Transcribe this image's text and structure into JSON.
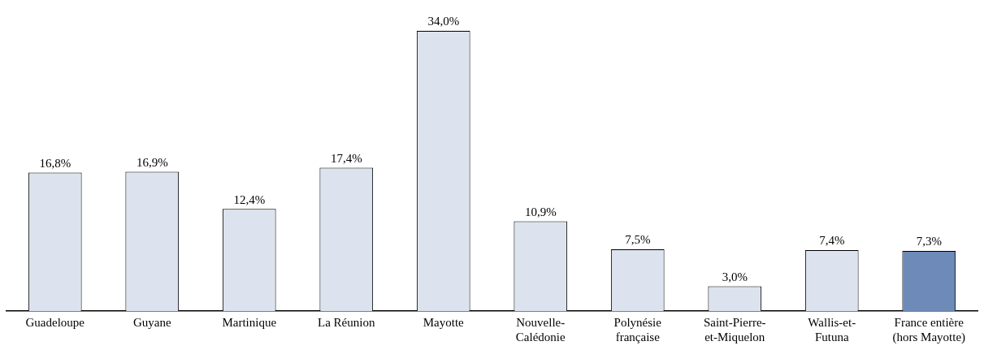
{
  "chart_data": {
    "type": "bar",
    "categories": [
      "Guadeloupe",
      "Guyane",
      "Martinique",
      "La Réunion",
      "Mayotte",
      "Nouvelle-\nCalédonie",
      "Polynésie\nfrançaise",
      "Saint-Pierre-\net-Miquelon",
      "Wallis-et-\nFutuna",
      "France entière\n(hors Mayotte)"
    ],
    "values": [
      16.8,
      16.9,
      12.4,
      17.4,
      34.0,
      10.9,
      7.5,
      3.0,
      7.4,
      7.3
    ],
    "value_labels": [
      "16,8%",
      "16,9%",
      "12,4%",
      "17,4%",
      "34,0%",
      "10,9%",
      "7,5%",
      "3,0%",
      "7,4%",
      "7,3%"
    ],
    "colors": [
      "#dce3ee",
      "#dce3ee",
      "#dce3ee",
      "#dce3ee",
      "#dce3ee",
      "#dce3ee",
      "#dce3ee",
      "#dce3ee",
      "#dce3ee",
      "#6d8ab8"
    ],
    "ylim": [
      0,
      34
    ],
    "grid": false,
    "legend": false,
    "tick_labels": "x"
  }
}
